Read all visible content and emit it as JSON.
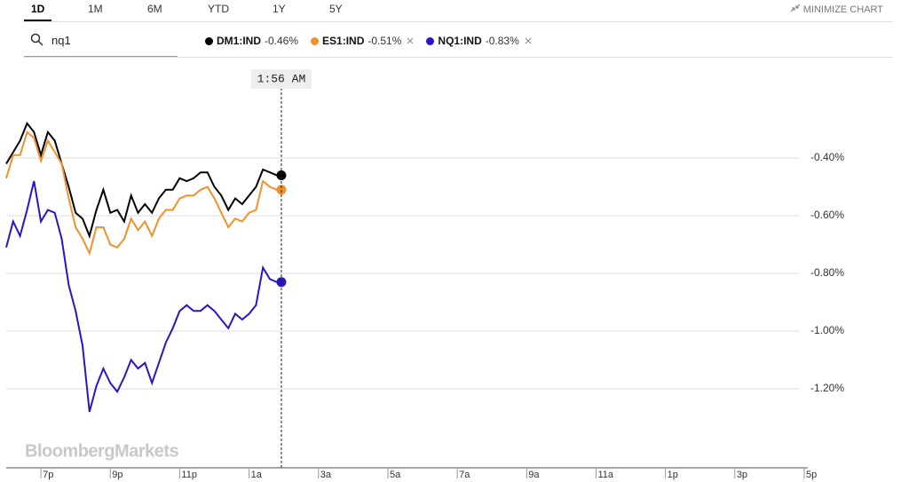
{
  "tabs": [
    "1D",
    "1M",
    "6M",
    "YTD",
    "1Y",
    "5Y"
  ],
  "selected_tab": "1D",
  "minimize": "MINIMIZE CHART",
  "search": "nq1",
  "watermark": "BloombergMarkets",
  "chart_data": {
    "type": "line",
    "x": [
      18.0,
      18.2,
      18.4,
      18.6,
      18.8,
      19.0,
      19.2,
      19.4,
      19.6,
      19.8,
      20.0,
      20.2,
      20.4,
      20.6,
      20.8,
      21.0,
      21.2,
      21.4,
      21.6,
      21.8,
      22.0,
      22.2,
      22.4,
      22.6,
      22.8,
      23.0,
      23.2,
      23.4,
      23.6,
      23.8,
      24.0,
      24.2,
      24.4,
      24.6,
      24.8,
      25.0,
      25.2,
      25.4,
      25.6,
      25.8,
      25.93
    ],
    "xlim": [
      18,
      41
    ],
    "xticks": [
      {
        "value": 19,
        "label": "7p"
      },
      {
        "value": 21,
        "label": "9p"
      },
      {
        "value": 23,
        "label": "11p"
      },
      {
        "value": 25,
        "label": "1a"
      },
      {
        "value": 27,
        "label": "3a"
      },
      {
        "value": 29,
        "label": "5a"
      },
      {
        "value": 31,
        "label": "7a"
      },
      {
        "value": 33,
        "label": "9a"
      },
      {
        "value": 35,
        "label": "11a"
      },
      {
        "value": 37,
        "label": "1p"
      },
      {
        "value": 39,
        "label": "3p"
      },
      {
        "value": 41,
        "label": "5p"
      }
    ],
    "ylim": [
      -1.47,
      -0.07
    ],
    "yticks": [
      {
        "value": -0.4,
        "label": "-0.40%"
      },
      {
        "value": -0.6,
        "label": "-0.60%"
      },
      {
        "value": -0.8,
        "label": "-0.80%"
      },
      {
        "value": -1.0,
        "label": "-1.00%"
      },
      {
        "value": -1.2,
        "label": "-1.20%"
      }
    ],
    "grid": true,
    "cursor": {
      "x": 25.93,
      "label": "1:56 AM"
    },
    "series": [
      {
        "name": "DM1:IND",
        "legend_value": "-0.46%",
        "color": "#000000",
        "removable": false,
        "values": [
          -0.42,
          -0.38,
          -0.34,
          -0.28,
          -0.31,
          -0.39,
          -0.31,
          -0.34,
          -0.42,
          -0.5,
          -0.59,
          -0.61,
          -0.67,
          -0.58,
          -0.51,
          -0.59,
          -0.58,
          -0.62,
          -0.53,
          -0.59,
          -0.56,
          -0.59,
          -0.54,
          -0.51,
          -0.51,
          -0.47,
          -0.48,
          -0.47,
          -0.45,
          -0.45,
          -0.5,
          -0.53,
          -0.58,
          -0.54,
          -0.56,
          -0.53,
          -0.5,
          -0.44,
          -0.45,
          -0.46,
          -0.46
        ]
      },
      {
        "name": "ES1:IND",
        "legend_value": "-0.51%",
        "color": "#f0912c",
        "removable": true,
        "values": [
          -0.47,
          -0.39,
          -0.39,
          -0.31,
          -0.33,
          -0.41,
          -0.34,
          -0.38,
          -0.42,
          -0.54,
          -0.64,
          -0.68,
          -0.73,
          -0.64,
          -0.64,
          -0.7,
          -0.71,
          -0.68,
          -0.61,
          -0.65,
          -0.62,
          -0.67,
          -0.61,
          -0.58,
          -0.58,
          -0.54,
          -0.53,
          -0.53,
          -0.51,
          -0.5,
          -0.54,
          -0.59,
          -0.64,
          -0.61,
          -0.62,
          -0.59,
          -0.58,
          -0.48,
          -0.5,
          -0.51,
          -0.51
        ]
      },
      {
        "name": "NQ1:IND",
        "legend_value": "-0.83%",
        "color": "#2a14c8",
        "removable": true,
        "values": [
          -0.71,
          -0.62,
          -0.67,
          -0.58,
          -0.48,
          -0.62,
          -0.58,
          -0.59,
          -0.68,
          -0.84,
          -0.93,
          -1.05,
          -1.28,
          -1.19,
          -1.13,
          -1.18,
          -1.21,
          -1.16,
          -1.1,
          -1.13,
          -1.11,
          -1.18,
          -1.11,
          -1.04,
          -0.99,
          -0.93,
          -0.91,
          -0.93,
          -0.93,
          -0.91,
          -0.93,
          -0.96,
          -0.99,
          -0.94,
          -0.96,
          -0.94,
          -0.91,
          -0.78,
          -0.82,
          -0.83,
          -0.83
        ]
      }
    ]
  }
}
